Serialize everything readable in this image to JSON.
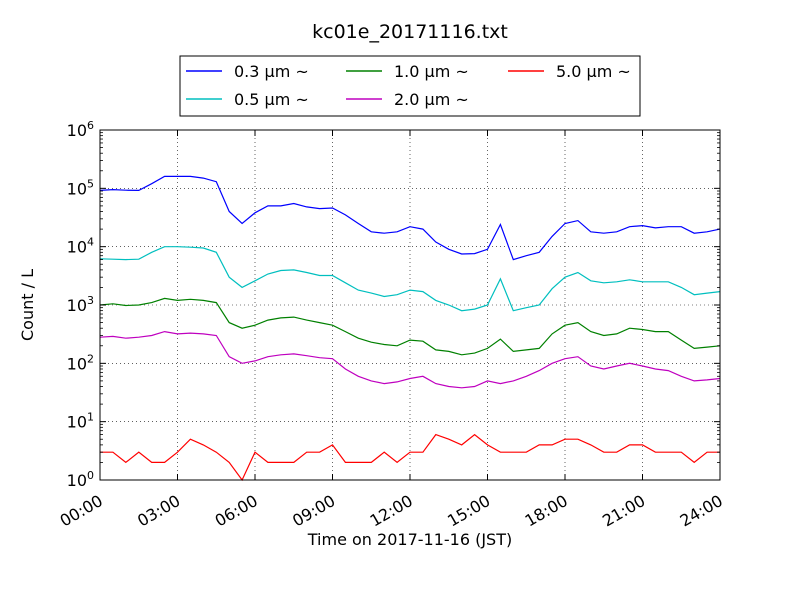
{
  "chart_data": {
    "type": "line",
    "title": "kc01e_20171116.txt",
    "xlabel": "Time on 2017-11-16 (JST)",
    "ylabel": "Count / L",
    "yscale": "log",
    "ylim": [
      1,
      1000000
    ],
    "xlim": [
      "00:00",
      "24:00"
    ],
    "grid": true,
    "legend_position": "top-outside",
    "x_ticks": [
      "00:00",
      "03:00",
      "06:00",
      "09:00",
      "12:00",
      "15:00",
      "18:00",
      "21:00",
      "24:00"
    ],
    "y_ticks": [
      {
        "base": "10",
        "exp": "0",
        "value": 1
      },
      {
        "base": "10",
        "exp": "1",
        "value": 10
      },
      {
        "base": "10",
        "exp": "2",
        "value": 100
      },
      {
        "base": "10",
        "exp": "3",
        "value": 1000
      },
      {
        "base": "10",
        "exp": "4",
        "value": 10000
      },
      {
        "base": "10",
        "exp": "5",
        "value": 100000
      },
      {
        "base": "10",
        "exp": "6",
        "value": 1000000
      }
    ],
    "x": [
      "00:00",
      "00:30",
      "01:00",
      "01:30",
      "02:00",
      "02:30",
      "03:00",
      "03:30",
      "04:00",
      "04:30",
      "05:00",
      "05:30",
      "06:00",
      "06:30",
      "07:00",
      "07:30",
      "08:00",
      "08:30",
      "09:00",
      "09:30",
      "10:00",
      "10:30",
      "11:00",
      "11:30",
      "12:00",
      "12:30",
      "13:00",
      "13:30",
      "14:00",
      "14:30",
      "15:00",
      "15:30",
      "16:00",
      "16:30",
      "17:00",
      "17:30",
      "18:00",
      "18:30",
      "19:00",
      "19:30",
      "20:00",
      "20:30",
      "21:00",
      "21:30",
      "22:00",
      "22:30",
      "23:00",
      "23:30",
      "24:00"
    ],
    "series": [
      {
        "name": "0.3 µm ~",
        "color": "#0000ff",
        "values": [
          92000,
          95000,
          93000,
          92000,
          120000,
          160000,
          160000,
          160000,
          150000,
          130000,
          40000,
          25000,
          38000,
          50000,
          50000,
          55000,
          48000,
          45000,
          46000,
          35000,
          25000,
          18000,
          17000,
          18000,
          22000,
          20000,
          12000,
          9000,
          7500,
          7600,
          9000,
          24000,
          6000,
          7000,
          8000,
          15000,
          25000,
          28000,
          18000,
          17000,
          18000,
          22000,
          23000,
          21000,
          22000,
          22000,
          17000,
          18000,
          20000
        ]
      },
      {
        "name": "0.5 µm ~",
        "color": "#00bfbf",
        "values": [
          6200,
          6100,
          6000,
          6100,
          8000,
          10000,
          10000,
          9800,
          9500,
          8000,
          3000,
          2000,
          2600,
          3400,
          3900,
          4000,
          3600,
          3200,
          3200,
          2400,
          1800,
          1600,
          1400,
          1500,
          1800,
          1700,
          1200,
          1000,
          800,
          850,
          1000,
          2800,
          800,
          900,
          1000,
          1900,
          3000,
          3600,
          2600,
          2400,
          2500,
          2700,
          2500,
          2500,
          2500,
          2000,
          1500,
          1600,
          1700
        ]
      },
      {
        "name": "1.0 µm ~",
        "color": "#008000",
        "values": [
          1000,
          1050,
          980,
          1000,
          1100,
          1300,
          1200,
          1250,
          1200,
          1100,
          500,
          400,
          450,
          550,
          600,
          620,
          550,
          500,
          450,
          350,
          270,
          230,
          210,
          200,
          250,
          240,
          170,
          160,
          140,
          150,
          180,
          260,
          160,
          170,
          180,
          320,
          450,
          500,
          350,
          300,
          320,
          400,
          380,
          350,
          350,
          250,
          180,
          190,
          200
        ]
      },
      {
        "name": "2.0 µm ~",
        "color": "#bf00bf",
        "values": [
          280,
          290,
          270,
          280,
          300,
          350,
          320,
          330,
          320,
          300,
          130,
          100,
          110,
          130,
          140,
          145,
          135,
          125,
          120,
          80,
          60,
          50,
          45,
          48,
          55,
          60,
          45,
          40,
          38,
          40,
          50,
          45,
          50,
          60,
          75,
          100,
          120,
          130,
          90,
          80,
          90,
          100,
          90,
          80,
          75,
          60,
          50,
          52,
          55
        ]
      },
      {
        "name": "5.0 µm ~",
        "color": "#ff0000",
        "values": [
          3,
          3,
          2,
          3,
          2,
          2,
          3,
          5,
          4,
          3,
          2,
          1,
          3,
          2,
          2,
          2,
          3,
          3,
          4,
          2,
          2,
          2,
          3,
          2,
          3,
          3,
          6,
          5,
          4,
          6,
          4,
          3,
          3,
          3,
          4,
          4,
          5,
          5,
          4,
          3,
          3,
          4,
          4,
          3,
          3,
          3,
          2,
          3,
          3
        ]
      }
    ]
  }
}
